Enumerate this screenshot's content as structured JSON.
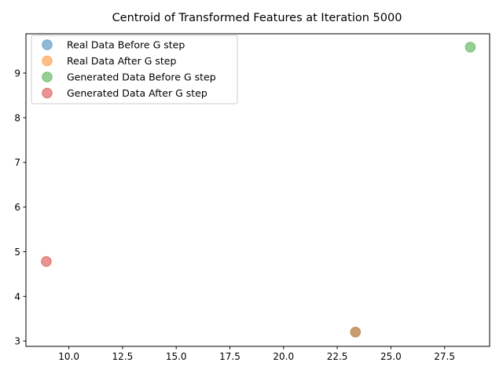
{
  "chart_data": {
    "type": "scatter",
    "title": "Centroid of Transformed Features at Iteration 5000",
    "xlabel": "",
    "ylabel": "",
    "xlim": [
      8.0,
      29.6
    ],
    "ylim": [
      2.88,
      9.88
    ],
    "x_ticks": [
      "10.0",
      "12.5",
      "15.0",
      "17.5",
      "20.0",
      "22.5",
      "25.0",
      "27.5"
    ],
    "x_tick_values": [
      10.0,
      12.5,
      15.0,
      17.5,
      20.0,
      22.5,
      25.0,
      27.5
    ],
    "y_ticks": [
      "3",
      "4",
      "5",
      "6",
      "7",
      "8",
      "9"
    ],
    "y_tick_values": [
      3,
      4,
      5,
      6,
      7,
      8,
      9
    ],
    "grid": false,
    "legend_position": "top-left",
    "series": [
      {
        "name": "Real Data Before G step",
        "color": "#1f77b4",
        "points": [
          {
            "x": 23.35,
            "y": 3.2
          }
        ]
      },
      {
        "name": "Real Data After G step",
        "color": "#ff7f0e",
        "points": [
          {
            "x": 23.35,
            "y": 3.2
          }
        ]
      },
      {
        "name": "Generated Data Before G step",
        "color": "#2ca02c",
        "points": [
          {
            "x": 28.7,
            "y": 9.58
          }
        ]
      },
      {
        "name": "Generated Data After G step",
        "color": "#d62728",
        "points": [
          {
            "x": 8.95,
            "y": 4.78
          }
        ]
      }
    ]
  }
}
